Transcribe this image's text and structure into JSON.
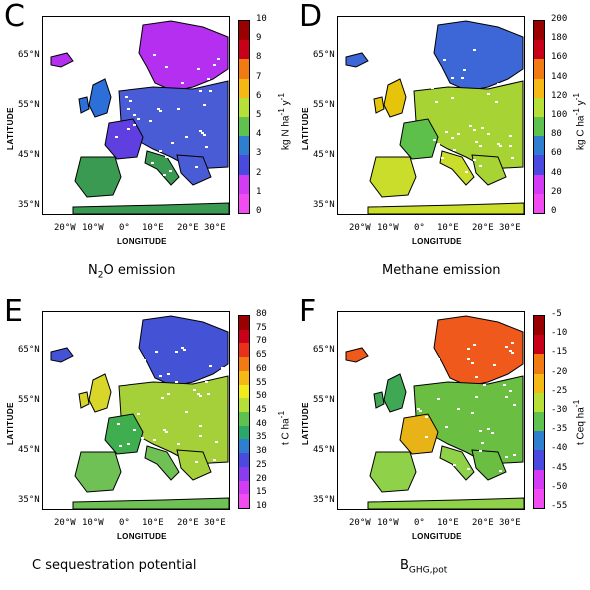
{
  "axis": {
    "lat_title": "LATITUDE",
    "lon_title": "LONGITUDE",
    "lat_ticks": [
      "65°N",
      "55°N",
      "45°N",
      "35°N"
    ],
    "lon_ticks": [
      "20°W",
      "10°W",
      "0°",
      "10°E",
      "20°E",
      "30°E"
    ]
  },
  "panels": [
    {
      "letter": "C",
      "caption_main": "N",
      "caption_sub": "2",
      "caption_rest": "O emission",
      "unit_text": "kg N ha",
      "unit_sup1": "-1",
      "unit_mid": " y",
      "unit_sup2": "-1",
      "ticks": [
        "10",
        "9",
        "8",
        "7",
        "6",
        "5",
        "4",
        "3",
        "2",
        "1",
        "0"
      ],
      "map_colors": {
        "north": "#b52ff0",
        "central": "#4a5bd6",
        "west": "#2d6fd8",
        "south": "#3a9a52",
        "iberia": "#5f3fe0"
      }
    },
    {
      "letter": "D",
      "caption_main": "Methane emission",
      "caption_sub": "",
      "caption_rest": "",
      "unit_text": "kg C ha",
      "unit_sup1": "-1",
      "unit_mid": " y",
      "unit_sup2": "-1",
      "ticks": [
        "200",
        "180",
        "160",
        "140",
        "120",
        "100",
        "80",
        "60",
        "40",
        "20",
        "0"
      ],
      "map_colors": {
        "north": "#3d66d6",
        "central": "#a7d334",
        "west": "#e6c40a",
        "south": "#c9dd2a",
        "iberia": "#5dc04a"
      }
    },
    {
      "letter": "E",
      "caption_main": "C sequestration potential",
      "caption_sub": "",
      "caption_rest": "",
      "unit_text": "t C ha",
      "unit_sup1": "-1",
      "unit_mid": "",
      "unit_sup2": "",
      "ticks": [
        "80",
        "75",
        "70",
        "65",
        "60",
        "55",
        "50",
        "45",
        "40",
        "35",
        "30",
        "25",
        "20",
        "15",
        "10"
      ],
      "map_colors": {
        "north": "#4453d6",
        "central": "#a6d03a",
        "west": "#d8d62a",
        "south": "#6fc055",
        "iberia": "#3fae4e"
      }
    },
    {
      "letter": "F",
      "caption_main": "B",
      "caption_sub": "GHG,pot",
      "caption_rest": "",
      "unit_text": "t Ceq ha",
      "unit_sup1": "-1",
      "unit_mid": "",
      "unit_sup2": "",
      "ticks": [
        "-5",
        "-10",
        "-15",
        "-20",
        "-25",
        "-30",
        "-35",
        "-40",
        "-45",
        "-50",
        "-55"
      ],
      "map_colors": {
        "north": "#ef5a1c",
        "central": "#6abf42",
        "west": "#3fa855",
        "south": "#8fd24a",
        "iberia": "#e8b316"
      }
    }
  ],
  "palette": [
    "#9a0000",
    "#c8001a",
    "#e8301a",
    "#f27a12",
    "#f6b814",
    "#f2ea1c",
    "#b6e038",
    "#5fc24e",
    "#2aa86a",
    "#2f7fd0",
    "#4a4ae0",
    "#8a3cf0",
    "#d23cf4",
    "#f04cf2"
  ]
}
